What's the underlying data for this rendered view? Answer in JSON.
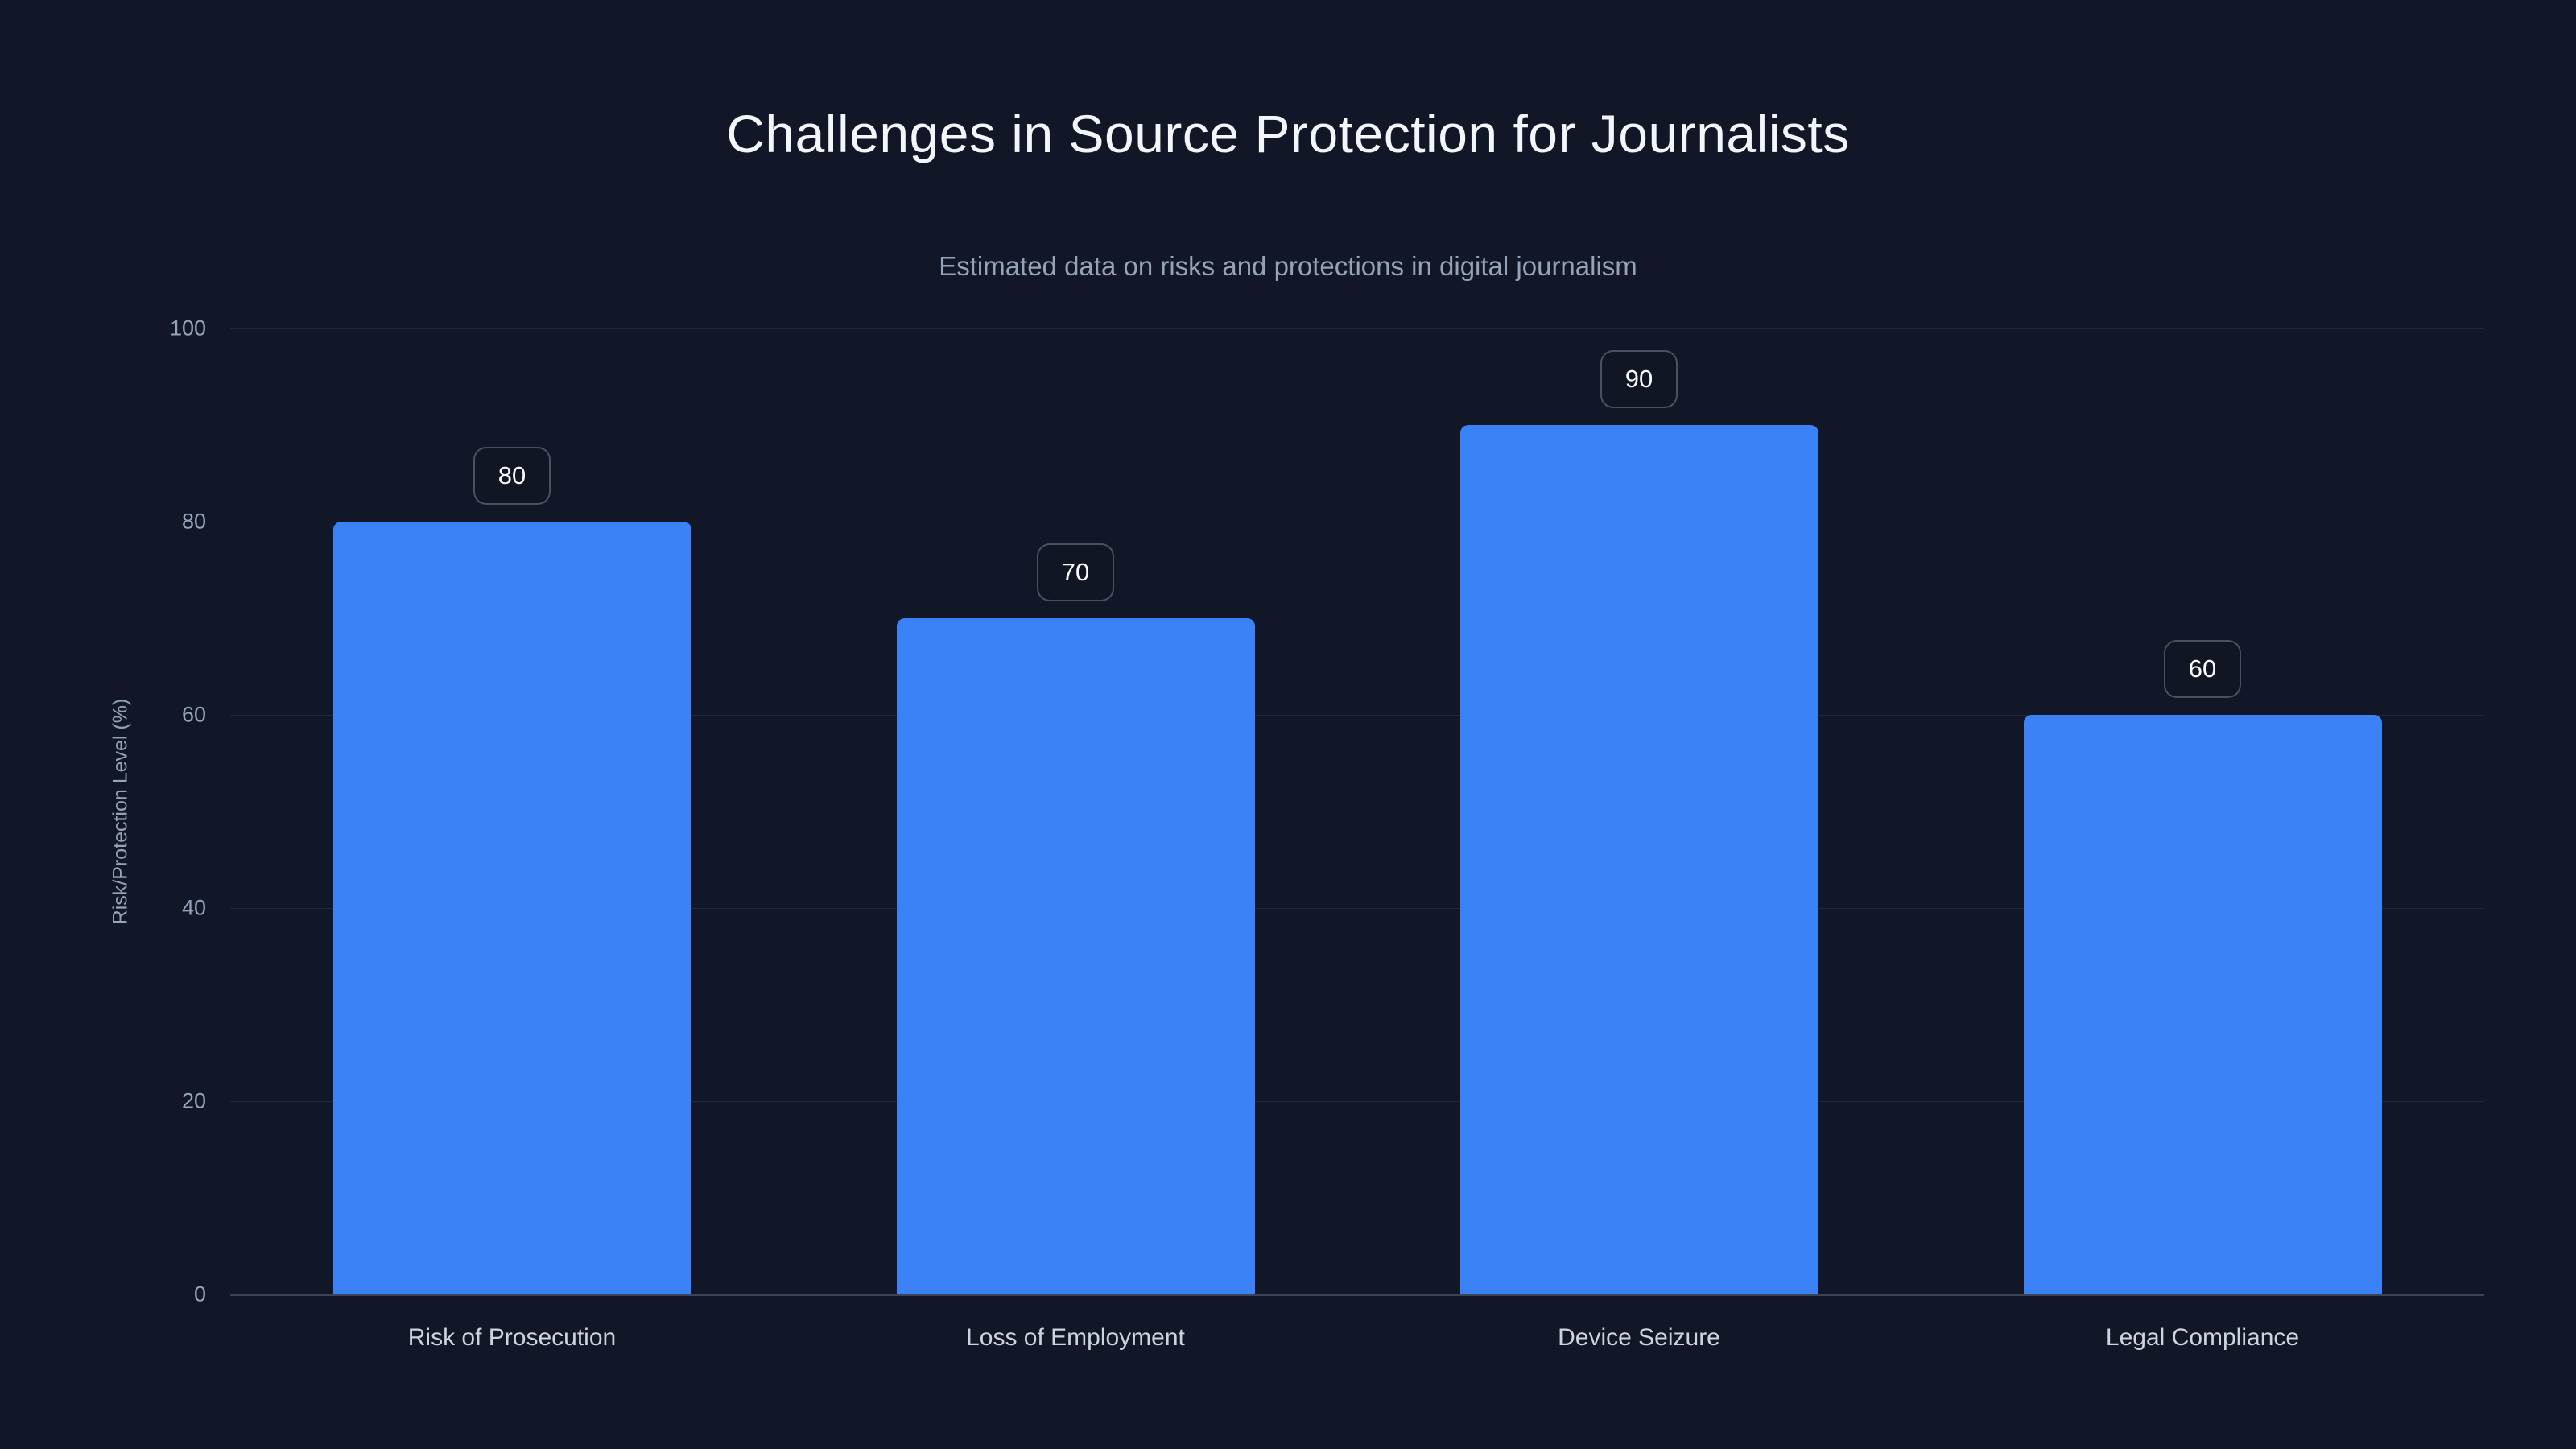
{
  "chart_data": {
    "type": "bar",
    "title": "Challenges in Source Protection for Journalists",
    "subtitle": "Estimated data on risks and protections in digital journalism",
    "categories": [
      "Risk of Prosecution",
      "Loss of Employment",
      "Device Seizure",
      "Legal Compliance"
    ],
    "values": [
      80,
      70,
      90,
      60
    ],
    "value_labels": [
      "80",
      "70",
      "90",
      "60"
    ],
    "xlabel": "",
    "ylabel": "Risk/Protection Level (%)",
    "ylim": [
      0,
      100
    ],
    "yticks": [
      0,
      20,
      40,
      60,
      80,
      100
    ],
    "grid": true,
    "legend": false,
    "colors": {
      "background": "#111726",
      "bar": "#3b82f6",
      "title_text": "#f3f6fb",
      "subtitle_text": "#94a3b8",
      "axis_text": "#94a3b8",
      "category_text": "#cbd5e1",
      "badge_text": "#f8fafc"
    }
  }
}
